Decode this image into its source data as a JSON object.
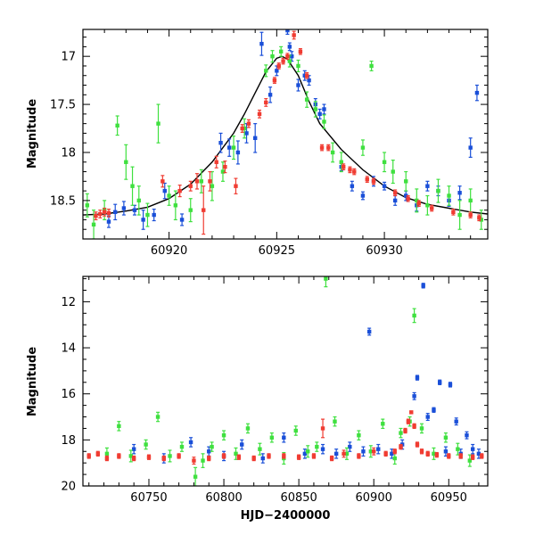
{
  "chart_data": [
    {
      "type": "scatter",
      "title": "",
      "xlabel": "",
      "ylabel": "Magnitude",
      "xlim": [
        60916,
        60934.8
      ],
      "ylim": [
        18.9,
        16.72
      ],
      "y_inverted": true,
      "xticks": [
        60920,
        60925,
        60930
      ],
      "yticks": [
        17,
        17.5,
        18,
        18.5
      ],
      "ytick_labels": [
        "17",
        "17.5",
        "18",
        "18.5"
      ],
      "model_curve": {
        "name": "model",
        "color": "#000000",
        "x": [
          60916,
          60917,
          60918,
          60919,
          60920,
          60921,
          60922,
          60923,
          60923.5,
          60924,
          60924.5,
          60925,
          60925.25,
          60925.5,
          60926,
          60926.5,
          60927,
          60928,
          60929,
          60930,
          60931,
          60932,
          60933,
          60934,
          60934.8
        ],
        "y": [
          18.65,
          18.64,
          18.61,
          18.57,
          18.48,
          18.33,
          18.1,
          17.8,
          17.6,
          17.38,
          17.16,
          17.02,
          17.0,
          17.03,
          17.2,
          17.47,
          17.7,
          17.97,
          18.18,
          18.35,
          18.47,
          18.54,
          18.58,
          18.62,
          18.64
        ]
      },
      "series": [
        {
          "name": "blue",
          "color": "#1a4fd8",
          "x": [
            60917.2,
            60917.5,
            60917.9,
            60918.4,
            60918.8,
            60919.3,
            60919.8,
            60920.6,
            60922.4,
            60922.8,
            60923.2,
            60923.6,
            60924.0,
            60924.3,
            60924.7,
            60925.0,
            60925.5,
            60925.6,
            60925.7,
            60926.0,
            60926.3,
            60926.5,
            60926.8,
            60927.0,
            60927.2,
            60928.0,
            60928.5,
            60929.0,
            60929.5,
            60930.0,
            60930.5,
            60931.0,
            60931.5,
            60932.0,
            60932.5,
            60933.0,
            60933.5,
            60934.0,
            60934.3
          ],
          "y": [
            18.72,
            18.62,
            18.58,
            18.6,
            18.7,
            18.65,
            18.4,
            18.7,
            17.9,
            17.95,
            18.0,
            17.8,
            17.85,
            16.87,
            17.4,
            17.15,
            16.73,
            16.9,
            17.0,
            17.3,
            17.2,
            17.25,
            17.5,
            17.6,
            17.55,
            18.15,
            18.35,
            18.45,
            18.3,
            18.35,
            18.5,
            18.45,
            18.55,
            18.35,
            18.4,
            18.5,
            18.42,
            17.95,
            17.38
          ],
          "yerr": [
            0.06,
            0.08,
            0.07,
            0.05,
            0.1,
            0.06,
            0.08,
            0.06,
            0.1,
            0.09,
            0.12,
            0.1,
            0.15,
            0.12,
            0.08,
            0.05,
            0.04,
            0.04,
            0.05,
            0.06,
            0.05,
            0.05,
            0.06,
            0.05,
            0.05,
            0.04,
            0.05,
            0.04,
            0.05,
            0.04,
            0.05,
            0.05,
            0.06,
            0.05,
            0.05,
            0.06,
            0.07,
            0.1,
            0.08
          ]
        },
        {
          "name": "green",
          "color": "#3fe03f",
          "x": [
            60916.2,
            60916.5,
            60917.0,
            60917.6,
            60918.0,
            60918.3,
            60918.6,
            60919.0,
            60919.5,
            60920.0,
            60920.3,
            60921.0,
            60921.5,
            60922.0,
            60922.5,
            60923.0,
            60923.5,
            60924.5,
            60924.8,
            60925.2,
            60925.6,
            60926.0,
            60926.4,
            60926.8,
            60927.2,
            60927.6,
            60928.0,
            60929.0,
            60929.4,
            60930.0,
            60930.4,
            60931.0,
            60931.5,
            60932.0,
            60932.5,
            60933.0,
            60933.5,
            60934.0,
            60934.5
          ],
          "y": [
            18.55,
            18.75,
            18.6,
            17.72,
            18.1,
            18.35,
            18.5,
            18.65,
            17.7,
            18.45,
            18.55,
            18.6,
            18.3,
            18.35,
            18.2,
            17.95,
            17.75,
            17.15,
            17.0,
            16.95,
            17.05,
            17.1,
            17.45,
            17.55,
            17.68,
            18.0,
            18.1,
            17.95,
            17.1,
            18.1,
            18.2,
            18.3,
            18.5,
            18.55,
            18.4,
            18.45,
            18.65,
            18.5,
            18.7
          ],
          "yerr": [
            0.12,
            0.15,
            0.1,
            0.1,
            0.18,
            0.2,
            0.15,
            0.12,
            0.2,
            0.1,
            0.15,
            0.12,
            0.12,
            0.15,
            0.1,
            0.12,
            0.1,
            0.06,
            0.06,
            0.05,
            0.06,
            0.06,
            0.08,
            0.08,
            0.07,
            0.1,
            0.1,
            0.08,
            0.05,
            0.1,
            0.12,
            0.1,
            0.12,
            0.1,
            0.12,
            0.1,
            0.15,
            0.12,
            0.1
          ]
        },
        {
          "name": "red",
          "color": "#f03c32",
          "x": [
            60916.6,
            60916.8,
            60917.0,
            60917.2,
            60919.7,
            60920.5,
            60921.0,
            60921.3,
            60921.6,
            60921.9,
            60922.2,
            60922.6,
            60923.1,
            60923.4,
            60923.7,
            60924.2,
            60924.5,
            60924.9,
            60925.1,
            60925.3,
            60925.5,
            60925.8,
            60926.1,
            60926.4,
            60927.1,
            60927.4,
            60928.1,
            60928.4,
            60928.6,
            60929.2,
            60929.5,
            60930.5,
            60931.1,
            60931.6,
            60932.2,
            60933.2,
            60934.0,
            60934.4
          ],
          "y": [
            18.66,
            18.64,
            18.62,
            18.63,
            18.3,
            18.4,
            18.35,
            18.3,
            18.6,
            18.3,
            18.1,
            18.15,
            18.35,
            17.75,
            17.7,
            17.6,
            17.48,
            17.25,
            17.1,
            17.05,
            17.0,
            16.78,
            16.95,
            17.2,
            17.95,
            17.95,
            18.15,
            18.18,
            18.2,
            18.28,
            18.3,
            18.42,
            18.48,
            18.53,
            18.58,
            18.62,
            18.65,
            18.68
          ],
          "yerr": [
            0.04,
            0.04,
            0.04,
            0.04,
            0.06,
            0.06,
            0.05,
            0.08,
            0.25,
            0.1,
            0.06,
            0.06,
            0.08,
            0.04,
            0.04,
            0.04,
            0.04,
            0.03,
            0.03,
            0.03,
            0.03,
            0.04,
            0.03,
            0.03,
            0.03,
            0.03,
            0.03,
            0.03,
            0.03,
            0.03,
            0.03,
            0.03,
            0.03,
            0.03,
            0.03,
            0.03,
            0.03,
            0.03
          ]
        }
      ]
    },
    {
      "type": "scatter",
      "title": "",
      "xlabel": "HJD−2400000",
      "ylabel": "Magnitude",
      "xlim": [
        60706,
        60976
      ],
      "ylim": [
        20,
        10.9
      ],
      "y_inverted": true,
      "xticks": [
        60750,
        60800,
        60850,
        60900,
        60950
      ],
      "yticks": [
        12,
        14,
        16,
        18,
        20
      ],
      "ytick_labels": [
        "12",
        "14",
        "16",
        "18",
        "20"
      ],
      "series": [
        {
          "name": "blue",
          "color": "#1a4fd8",
          "x": [
            60740,
            60760,
            60778,
            60790,
            60800,
            60812,
            60826,
            60840,
            60854,
            60866,
            60875,
            60884,
            60893,
            60897,
            60903,
            60912,
            60919,
            60927,
            60929,
            60933,
            60936,
            60940,
            60944,
            60948,
            60951,
            60955,
            60958,
            60962,
            60966,
            60970
          ],
          "y": [
            18.4,
            18.8,
            18.1,
            18.5,
            18.7,
            18.2,
            18.8,
            17.9,
            18.6,
            18.4,
            18.6,
            18.3,
            18.5,
            13.3,
            18.4,
            18.6,
            18.2,
            16.1,
            15.3,
            11.3,
            17.0,
            16.7,
            15.5,
            18.5,
            15.6,
            17.2,
            18.6,
            17.8,
            18.4,
            18.6
          ],
          "yerr": [
            0.2,
            0.2,
            0.2,
            0.2,
            0.2,
            0.2,
            0.2,
            0.2,
            0.2,
            0.2,
            0.2,
            0.2,
            0.2,
            0.15,
            0.2,
            0.2,
            0.2,
            0.15,
            0.1,
            0.1,
            0.15,
            0.1,
            0.1,
            0.2,
            0.1,
            0.15,
            0.2,
            0.15,
            0.2,
            0.2
          ]
        },
        {
          "name": "green",
          "color": "#3fe03f",
          "x": [
            60722,
            60730,
            60738,
            60748,
            60756,
            60764,
            60772,
            60781,
            60786,
            60792,
            60800,
            60808,
            60816,
            60824,
            60832,
            60840,
            60848,
            60856,
            60862,
            60868,
            60874,
            60882,
            60890,
            60898,
            60906,
            60914,
            60918,
            60924,
            60927,
            60932,
            60940,
            60948,
            60956,
            60964
          ],
          "y": [
            18.6,
            17.4,
            18.7,
            18.2,
            17.0,
            18.7,
            18.3,
            19.6,
            18.9,
            18.3,
            17.8,
            18.6,
            17.5,
            18.4,
            17.9,
            18.8,
            17.6,
            18.5,
            18.3,
            11.0,
            17.2,
            18.6,
            17.8,
            18.5,
            17.3,
            18.8,
            17.7,
            17.2,
            12.6,
            17.5,
            18.6,
            17.9,
            18.4,
            18.9
          ],
          "yerr": [
            0.25,
            0.2,
            0.25,
            0.2,
            0.2,
            0.25,
            0.2,
            0.4,
            0.3,
            0.2,
            0.2,
            0.25,
            0.2,
            0.25,
            0.2,
            0.25,
            0.2,
            0.25,
            0.2,
            0.35,
            0.2,
            0.25,
            0.2,
            0.25,
            0.2,
            0.25,
            0.2,
            0.2,
            0.3,
            0.2,
            0.25,
            0.2,
            0.25,
            0.25
          ]
        },
        {
          "name": "red",
          "color": "#f03c32",
          "x": [
            60710,
            60716,
            60722,
            60730,
            60740,
            60750,
            60760,
            60770,
            60780,
            60790,
            60800,
            60810,
            60820,
            60830,
            60840,
            60850,
            60860,
            60866,
            60872,
            60880,
            60890,
            60900,
            60908,
            60914,
            60918,
            60921,
            60923,
            60925,
            60927,
            60929,
            60932,
            60936,
            60942,
            60950,
            60958,
            60966,
            60972
          ],
          "y": [
            18.7,
            18.6,
            18.8,
            18.7,
            18.8,
            18.75,
            18.8,
            18.7,
            18.9,
            18.8,
            18.7,
            18.75,
            18.8,
            18.7,
            18.7,
            18.75,
            18.7,
            17.5,
            18.8,
            18.6,
            18.7,
            18.5,
            18.6,
            18.5,
            18.3,
            17.6,
            17.2,
            16.8,
            17.4,
            18.2,
            18.5,
            18.6,
            18.65,
            18.7,
            18.7,
            18.75,
            18.7
          ],
          "yerr": [
            0.1,
            0.1,
            0.1,
            0.1,
            0.1,
            0.1,
            0.1,
            0.1,
            0.15,
            0.1,
            0.1,
            0.1,
            0.1,
            0.1,
            0.1,
            0.1,
            0.1,
            0.4,
            0.1,
            0.15,
            0.1,
            0.15,
            0.1,
            0.1,
            0.1,
            0.1,
            0.1,
            0.05,
            0.1,
            0.1,
            0.1,
            0.1,
            0.1,
            0.1,
            0.1,
            0.1,
            0.1
          ]
        }
      ]
    }
  ]
}
